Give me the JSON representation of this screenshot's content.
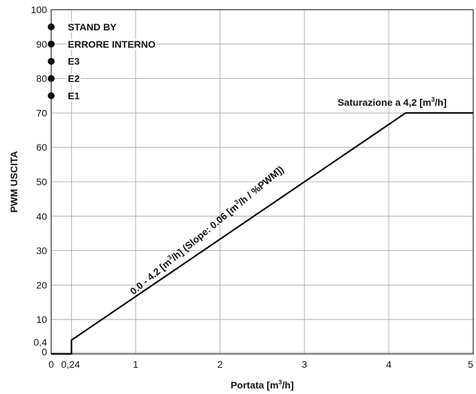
{
  "chart_data": {
    "type": "line",
    "xlabel_main": "Portata [m",
    "xlabel_sup": "3",
    "xlabel_end": "/h]",
    "ylabel": "PWM USCITA",
    "xlim": [
      0,
      5
    ],
    "ylim": [
      0,
      100
    ],
    "x_ticks": [
      {
        "value": 0,
        "label": "0"
      },
      {
        "value": 0.24,
        "label": "0,24"
      },
      {
        "value": 1,
        "label": "1"
      },
      {
        "value": 2,
        "label": "2"
      },
      {
        "value": 3,
        "label": "3"
      },
      {
        "value": 4,
        "label": "4"
      },
      {
        "value": 5,
        "label": "5"
      }
    ],
    "y_ticks": [
      {
        "value": 0,
        "label": "0"
      },
      {
        "value": 0.4,
        "label": "0,4"
      },
      {
        "value": 10,
        "label": "10"
      },
      {
        "value": 20,
        "label": "20"
      },
      {
        "value": 30,
        "label": "30"
      },
      {
        "value": 40,
        "label": "40"
      },
      {
        "value": 50,
        "label": "50"
      },
      {
        "value": 60,
        "label": "60"
      },
      {
        "value": 70,
        "label": "70"
      },
      {
        "value": 80,
        "label": "80"
      },
      {
        "value": 90,
        "label": "90"
      },
      {
        "value": 100,
        "label": "100"
      }
    ],
    "grid": true,
    "series": [
      {
        "points": [
          {
            "x": 0,
            "y": 0
          },
          {
            "x": 0.24,
            "y": 0
          },
          {
            "x": 0.24,
            "y": 4
          },
          {
            "x": 4.2,
            "y": 70
          },
          {
            "x": 5,
            "y": 70
          }
        ],
        "color": "#000000"
      }
    ],
    "status_points": [
      {
        "y": 95,
        "label": "STAND BY"
      },
      {
        "y": 90,
        "label": "ERRORE INTERNO"
      },
      {
        "y": 85,
        "label": "E3"
      },
      {
        "y": 80,
        "label": "E2"
      },
      {
        "y": 75,
        "label": "E1"
      }
    ],
    "annotations": {
      "saturation": {
        "main": "Saturazione a 4,2 [m",
        "sup": "3",
        "end": "/h]"
      },
      "slope": {
        "p1": "0.0 - 4.2 [m",
        "sup1": "3",
        "p2": "/h] (Slope: 0.06 [m",
        "sup2": "3",
        "p3": "/h / %PWM])"
      }
    }
  }
}
